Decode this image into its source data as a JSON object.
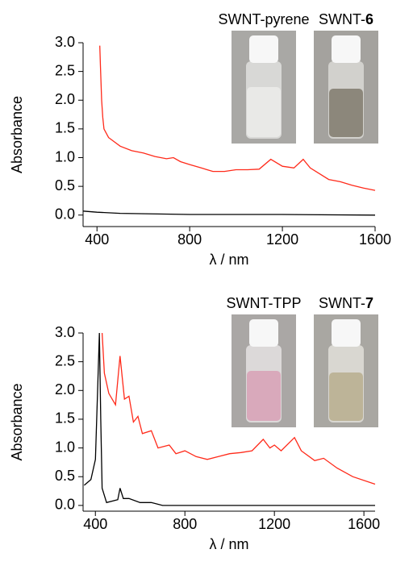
{
  "chart_data": [
    {
      "type": "line",
      "ylabel": "Absorbance",
      "xlabel": "λ / nm",
      "xlim": [
        340,
        1600
      ],
      "xticks": [
        400,
        800,
        1200,
        1600
      ],
      "ylim": [
        -0.2,
        3.0
      ],
      "yticks": [
        {
          "value": 0,
          "label": "0.0"
        },
        {
          "value": 0.5,
          "label": "0.5"
        },
        {
          "value": 1,
          "label": "1.0"
        },
        {
          "value": 1.5,
          "label": "1.5"
        },
        {
          "value": 2,
          "label": "2.0"
        },
        {
          "value": 2.5,
          "label": "2.5"
        },
        {
          "value": 3,
          "label": "3.0"
        }
      ],
      "annotations": [
        {
          "prefix": "SWNT-pyrene"
        },
        {
          "prefix": "SWNT-",
          "bold": "6"
        }
      ],
      "series": [
        {
          "color": "#ff2a1a",
          "x": [
            412,
            415,
            420,
            425,
            430,
            450,
            500,
            550,
            600,
            650,
            700,
            730,
            760,
            800,
            850,
            900,
            950,
            1000,
            1050,
            1100,
            1150,
            1200,
            1250,
            1290,
            1320,
            1400,
            1450,
            1500,
            1550,
            1600
          ],
          "values": [
            2.95,
            2.6,
            2.0,
            1.7,
            1.5,
            1.35,
            1.2,
            1.12,
            1.08,
            1.02,
            0.98,
            1.0,
            0.93,
            0.88,
            0.82,
            0.76,
            0.76,
            0.79,
            0.79,
            0.8,
            0.97,
            0.85,
            0.82,
            0.97,
            0.82,
            0.62,
            0.58,
            0.52,
            0.47,
            0.43
          ]
        },
        {
          "color": "#000000",
          "x": [
            340,
            400,
            500,
            800,
            1200,
            1600
          ],
          "values": [
            0.07,
            0.05,
            0.03,
            0.01,
            0.01,
            0.0
          ]
        }
      ]
    },
    {
      "type": "line",
      "ylabel": "Absorbance",
      "xlabel": "λ / nm",
      "xlim": [
        345,
        1650
      ],
      "xticks": [
        400,
        800,
        1200,
        1600
      ],
      "ylim": [
        -0.1,
        3.0
      ],
      "yticks": [
        {
          "value": 0,
          "label": "0.0"
        },
        {
          "value": 0.5,
          "label": "0.5"
        },
        {
          "value": 1,
          "label": "1.0"
        },
        {
          "value": 1.5,
          "label": "1.5"
        },
        {
          "value": 2,
          "label": "2.0"
        },
        {
          "value": 2.5,
          "label": "2.5"
        },
        {
          "value": 3,
          "label": "3.0"
        }
      ],
      "annotations": [
        {
          "prefix": "SWNT-TPP"
        },
        {
          "prefix": "SWNT-",
          "bold": "7"
        }
      ],
      "series": [
        {
          "color": "#ff2a1a",
          "x": [
            430,
            440,
            460,
            490,
            510,
            530,
            550,
            570,
            590,
            610,
            650,
            680,
            730,
            760,
            800,
            850,
            900,
            950,
            1000,
            1050,
            1100,
            1150,
            1180,
            1200,
            1230,
            1290,
            1320,
            1380,
            1420,
            1480,
            1550,
            1650
          ],
          "values": [
            3.0,
            2.3,
            1.95,
            1.75,
            2.6,
            1.85,
            1.9,
            1.45,
            1.55,
            1.25,
            1.3,
            1.0,
            1.05,
            0.9,
            0.95,
            0.85,
            0.8,
            0.85,
            0.9,
            0.92,
            0.95,
            1.15,
            1.0,
            1.05,
            0.95,
            1.18,
            0.95,
            0.78,
            0.82,
            0.65,
            0.5,
            0.37
          ]
        },
        {
          "color": "#000000",
          "x": [
            350,
            380,
            400,
            410,
            418,
            424,
            430,
            450,
            500,
            510,
            525,
            550,
            600,
            650,
            700,
            1000,
            1650
          ],
          "values": [
            0.35,
            0.45,
            0.8,
            2.0,
            3.0,
            1.5,
            0.3,
            0.05,
            0.1,
            0.3,
            0.12,
            0.12,
            0.05,
            0.05,
            0.0,
            0.0,
            0.0
          ]
        }
      ]
    }
  ]
}
